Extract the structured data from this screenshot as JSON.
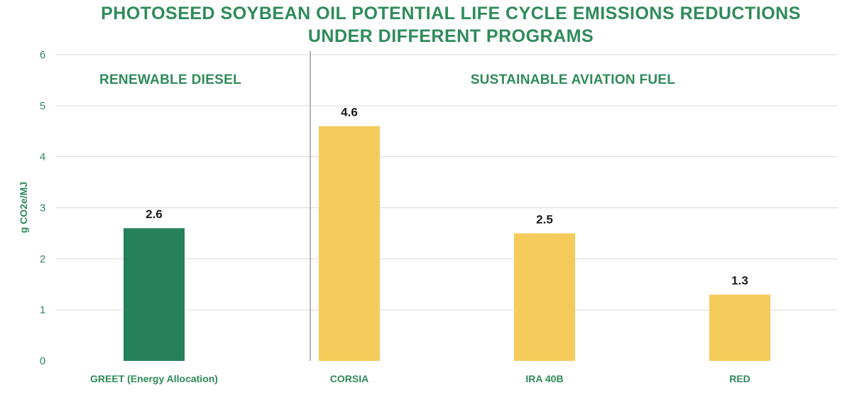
{
  "chart_data": {
    "type": "bar",
    "title_lines": [
      "PHOTOSEED SOYBEAN OIL POTENTIAL LIFE CYCLE EMISSIONS REDUCTIONS",
      "UNDER DIFFERENT PROGRAMS"
    ],
    "ylabel": "g CO2e/MJ",
    "ylim": [
      0,
      6
    ],
    "yticks": [
      "0",
      "1",
      "2",
      "3",
      "4",
      "5",
      "6"
    ],
    "grid": true,
    "categories": [
      "GREET (Energy Allocation)",
      "CORSIA",
      "IRA 40B",
      "RED"
    ],
    "values": [
      2.6,
      4.6,
      2.5,
      1.3
    ],
    "value_labels": [
      "2.6",
      "4.6",
      "2.5",
      "1.3"
    ],
    "groups": [
      {
        "label": "RENEWABLE DIESEL",
        "categories": [
          0
        ]
      },
      {
        "label": "SUSTAINABLE AVIATION FUEL",
        "categories": [
          1,
          2,
          3
        ]
      }
    ],
    "colors": {
      "title": "#2e8b5a",
      "renewable_diesel_bar": "#26815a",
      "saf_bar": "#f5cb5c",
      "axis_text": "#2e8b5a",
      "value_text": "#1a1a1a",
      "grid": "#d9d9d9",
      "divider": "#9a9a9a"
    },
    "bar_colors": [
      "#26815a",
      "#f5cb5c",
      "#f5cb5c",
      "#f5cb5c"
    ]
  }
}
